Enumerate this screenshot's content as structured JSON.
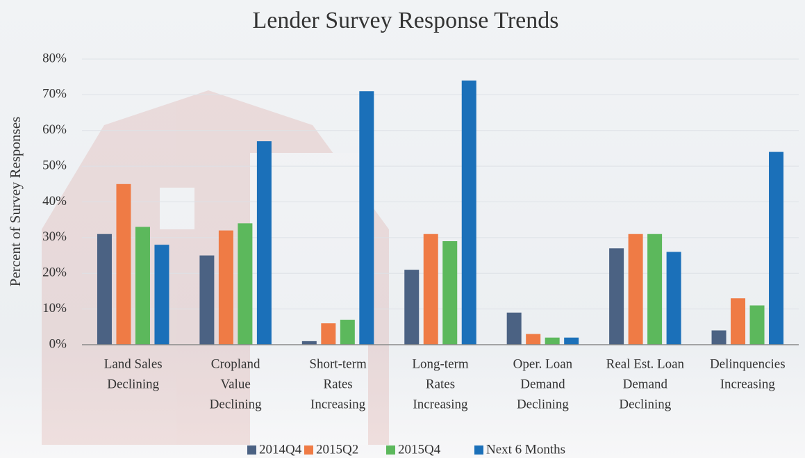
{
  "chart_data": {
    "type": "bar",
    "title": "Lender Survey Response Trends",
    "y_label": "Percent of Survey Responses",
    "categories": [
      [
        "Land Sales",
        "Declining"
      ],
      [
        "Cropland",
        "Value",
        "Declining"
      ],
      [
        "Short-term",
        "Rates",
        "Increasing"
      ],
      [
        "Long-term",
        "Rates",
        "Increasing"
      ],
      [
        "Oper. Loan",
        "Demand",
        "Declining"
      ],
      [
        "Real Est. Loan",
        "Demand",
        "Declining"
      ],
      [
        "Delinquencies",
        "Increasing"
      ]
    ],
    "series": [
      {
        "name": "2014Q4",
        "color": "#4b6283",
        "values": [
          31,
          25,
          1,
          21,
          9,
          27,
          4
        ]
      },
      {
        "name": "2015Q2",
        "color": "#ef7b45",
        "values": [
          45,
          32,
          6,
          31,
          3,
          31,
          13
        ]
      },
      {
        "name": "2015Q4",
        "color": "#5cb85c",
        "values": [
          33,
          34,
          7,
          29,
          2,
          31,
          11
        ]
      },
      {
        "name": "Next 6 Months",
        "color": "#1b70b9",
        "values": [
          28,
          57,
          71,
          74,
          2,
          26,
          54
        ]
      }
    ],
    "ylim": [
      0,
      80
    ],
    "yticks": [
      {
        "value": 0,
        "label": "0%"
      },
      {
        "value": 10,
        "label": "10%"
      },
      {
        "value": 20,
        "label": "20%"
      },
      {
        "value": 30,
        "label": "30%"
      },
      {
        "value": 40,
        "label": "40%"
      },
      {
        "value": 50,
        "label": "50%"
      },
      {
        "value": 60,
        "label": "60%"
      },
      {
        "value": 70,
        "label": "70%"
      },
      {
        "value": 80,
        "label": "80%"
      }
    ],
    "grid": true
  }
}
